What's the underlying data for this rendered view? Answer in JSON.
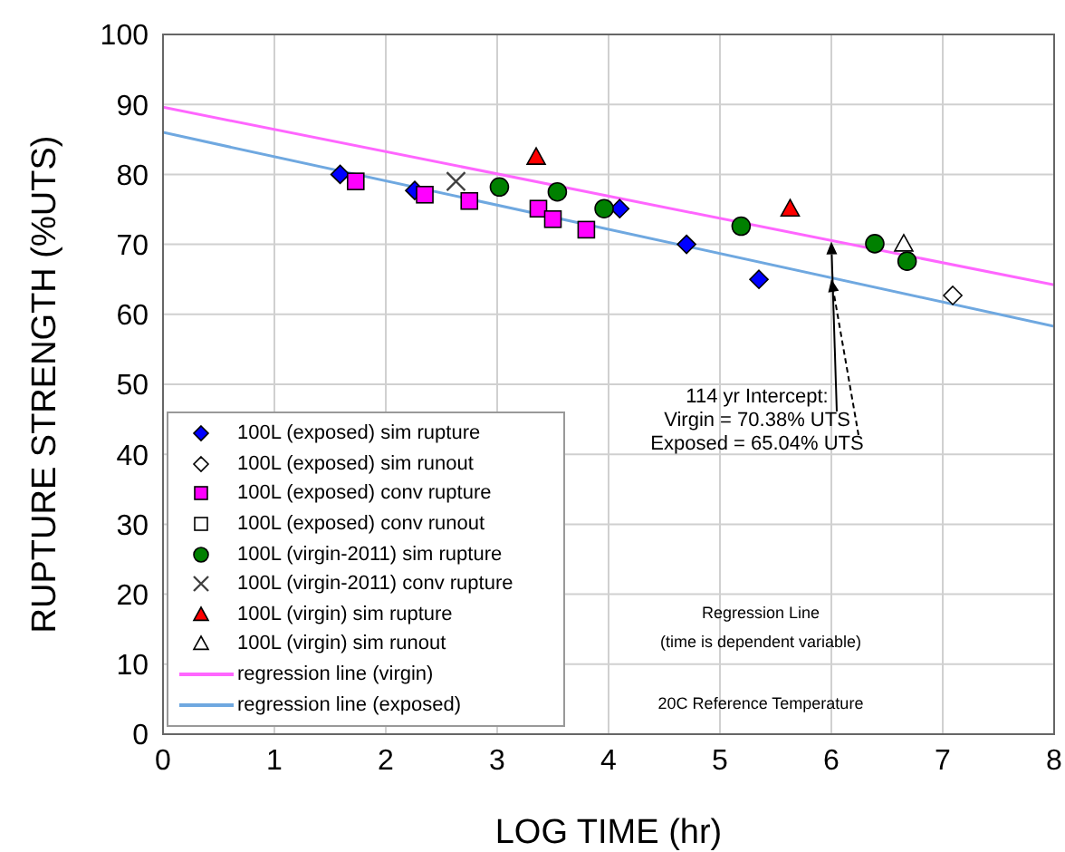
{
  "chart_data": {
    "type": "scatter",
    "xlabel": "LOG TIME (hr)",
    "ylabel": "RUPTURE STRENGTH (%UTS)",
    "xlim": [
      0,
      8
    ],
    "xticks": [
      0,
      1,
      2,
      3,
      4,
      5,
      6,
      7,
      8
    ],
    "ylim": [
      0,
      100
    ],
    "yticks": [
      0,
      10,
      20,
      30,
      40,
      50,
      60,
      70,
      80,
      90,
      100
    ],
    "grid": true,
    "legend": "bottom left",
    "series": [
      {
        "name": "100L (exposed) sim rupture",
        "marker": "diamond",
        "color": "#0000ff",
        "x": [
          1.59,
          2.26,
          4.1,
          4.7,
          5.35
        ],
        "values": [
          80.0,
          77.7,
          75.1,
          70.0,
          65.0
        ]
      },
      {
        "name": "100L (exposed) sim runout",
        "marker": "diamond",
        "color": "#ffffff",
        "x": [
          7.09
        ],
        "values": [
          62.7
        ]
      },
      {
        "name": "100L (exposed) conv rupture",
        "marker": "square",
        "color": "#ff00ff",
        "x": [
          1.73,
          2.35,
          2.75,
          3.37,
          3.5,
          3.8
        ],
        "values": [
          79.0,
          77.1,
          76.2,
          75.1,
          73.6,
          72.1
        ]
      },
      {
        "name": "100L (exposed) conv runout",
        "marker": "square",
        "color": "#ffffff"
      },
      {
        "name": "100L (virgin-2011) sim rupture",
        "marker": "circle",
        "color": "#008000",
        "x": [
          3.02,
          3.54,
          3.96,
          5.19,
          6.39,
          6.68
        ],
        "values": [
          78.2,
          77.5,
          75.1,
          72.6,
          70.1,
          67.6
        ]
      },
      {
        "name": "100L (virgin-2011) conv rupture",
        "marker": "cross",
        "color": "#404040",
        "x": [
          2.63
        ],
        "values": [
          79.0
        ]
      },
      {
        "name": "100L (virgin) sim rupture",
        "marker": "triangle",
        "color": "#ff0000",
        "x": [
          3.35,
          5.63
        ],
        "values": [
          82.5,
          75.1
        ]
      },
      {
        "name": "100L (virgin) sim runout",
        "marker": "triangle",
        "color": "#ffffff",
        "x": [
          6.65
        ],
        "values": [
          70.1
        ]
      },
      {
        "name": "regression line (virgin)",
        "type": "line",
        "marker": "none",
        "color": "#ff66ff",
        "x": [
          0,
          8
        ],
        "values": [
          89.6,
          64.2
        ]
      },
      {
        "name": "regression line (exposed)",
        "type": "line",
        "marker": "none",
        "color": "#6fa8e0",
        "x": [
          0,
          8
        ],
        "values": [
          86.0,
          58.3
        ]
      }
    ],
    "annotations": [
      "114 yr Intercept:",
      {
        "text": "Virgin = 70.38% UTS",
        "x": 6,
        "y": 70.38
      },
      {
        "text": "Exposed = 65.04% UTS",
        "x": 6,
        "y": 65.04
      },
      "Regression Line",
      "(time is dependent variable)",
      "20C Reference Temperature"
    ]
  }
}
